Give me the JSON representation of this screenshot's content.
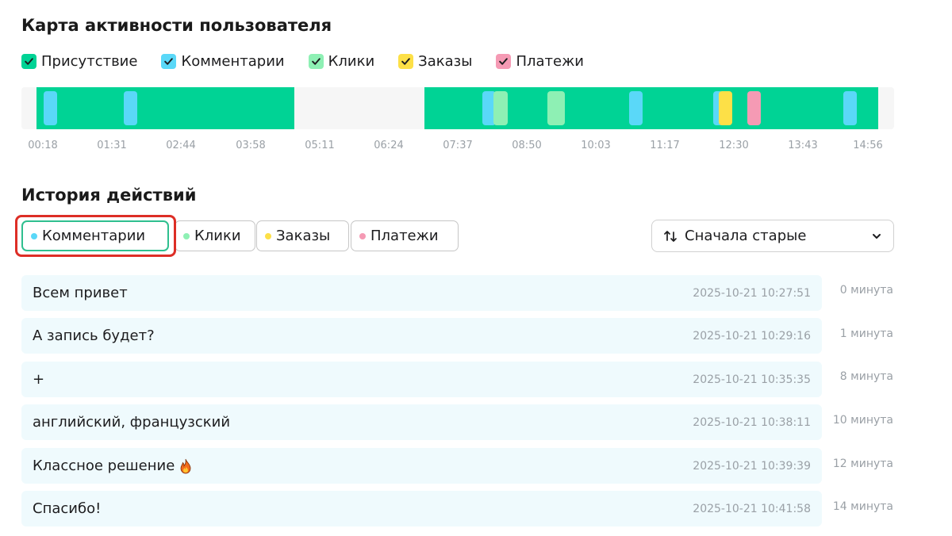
{
  "activity": {
    "title": "Карта активности пользователя",
    "legend": [
      {
        "label": "Присутствие",
        "color": "#00d395",
        "checked": true
      },
      {
        "label": "Комментарии",
        "color": "#5ad8f8",
        "checked": true
      },
      {
        "label": "Клики",
        "color": "#8ef0b4",
        "checked": true
      },
      {
        "label": "Заказы",
        "color": "#fde047",
        "checked": true
      },
      {
        "label": "Платежи",
        "color": "#f59ab4",
        "checked": true
      }
    ],
    "ticks": [
      "00:18",
      "01:31",
      "02:44",
      "03:58",
      "05:11",
      "06:24",
      "07:37",
      "08:50",
      "10:03",
      "11:17",
      "12:30",
      "13:43",
      "14:56"
    ]
  },
  "history": {
    "title": "История действий",
    "filters": [
      {
        "label": "Комментарии",
        "color": "#5ad8f8",
        "active": true
      },
      {
        "label": "Клики",
        "color": "#8ef0b4",
        "active": false
      },
      {
        "label": "Заказы",
        "color": "#fde047",
        "active": false
      },
      {
        "label": "Платежи",
        "color": "#f59ab4",
        "active": false
      }
    ],
    "sort_label": "Сначала старые",
    "rows": [
      {
        "text": "Всем привет",
        "time": "2025-10-21 10:27:51",
        "ago": "0 минута"
      },
      {
        "text": "А запись будет?",
        "time": "2025-10-21 10:29:16",
        "ago": "1 минута"
      },
      {
        "text": "+",
        "time": "2025-10-21 10:35:35",
        "ago": "8 минута"
      },
      {
        "text": "английский, французский",
        "time": "2025-10-21 10:38:11",
        "ago": "10 минута"
      },
      {
        "text": "Классное решение",
        "time": "2025-10-21 10:39:39",
        "ago": "12 минута",
        "emoji": "fire-icon"
      },
      {
        "text": "Спасибо!",
        "time": "2025-10-21 10:41:58",
        "ago": "14 минута"
      }
    ]
  }
}
